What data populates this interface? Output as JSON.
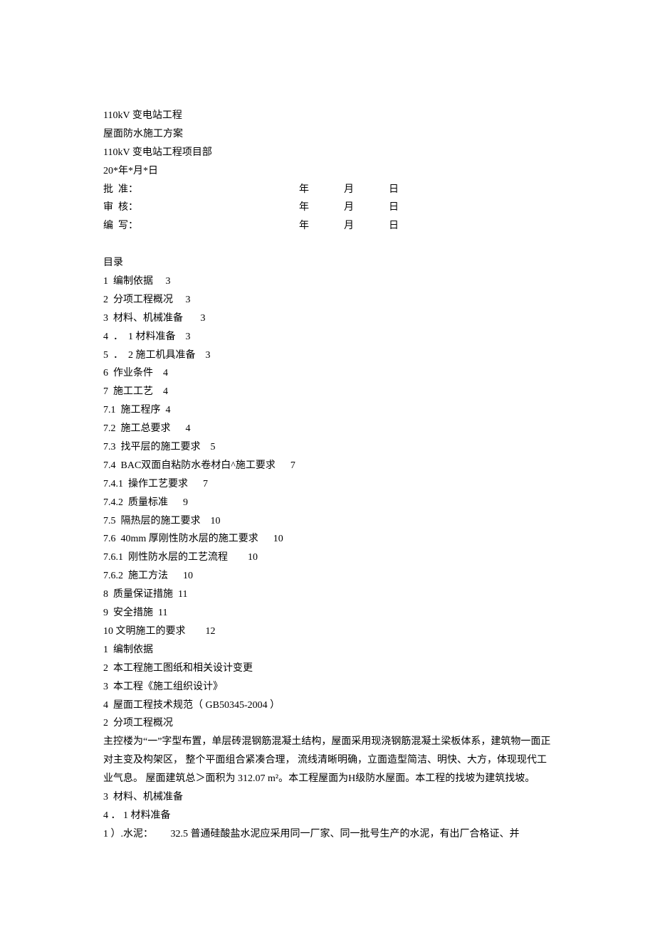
{
  "header": {
    "line1": "110kV 变电站工程",
    "line2": "屋面防水施工方案",
    "line3": "110kV 变电站工程项目部",
    "line4": "20*年*月*日"
  },
  "approvals": [
    {
      "label_a": "批",
      "label_b": "准：",
      "y": "年",
      "m": "月",
      "d": "日"
    },
    {
      "label_a": "审",
      "label_b": "核：",
      "y": "年",
      "m": "月",
      "d": "日"
    },
    {
      "label_a": "编",
      "label_b": "写：",
      "y": "年",
      "m": "月",
      "d": "日"
    }
  ],
  "toc_title": "目录",
  "toc": [
    "1  编制依据     3",
    "2  分项工程概况     3",
    "3  材料、机械准备       3",
    "4  ．  1 材料准备    3",
    "5  ．  2 施工机具准备    3",
    "6  作业条件    4",
    "7  施工工艺    4",
    "7.1  施工程序  4",
    "7.2  施工总要求      4",
    "7.3  找平层的施工要求    5",
    "7.4  BAC双面自粘防水卷材白^施工要求      7",
    "7.4.1  操作工艺要求      7",
    "7.4.2  质量标准      9",
    "7.5  隔热层的施工要求    10",
    "7.6  40mm 厚刚性防水层的施工要求      10",
    "7.6.1  刚性防水层的工艺流程        10",
    "7.6.2  施工方法      10",
    "8  质量保证措施  11",
    "9  安全措施  11",
    "10 文明施工的要求        12"
  ],
  "body": [
    "1  编制依据",
    "2  本工程施工图纸和相关设计变更",
    "3  本工程《施工组织设计》",
    "4  屋面工程技术规范（ GB50345-2004 ）",
    "2  分项工程概况"
  ],
  "para1": "主控楼为“一”字型布置，单层砖混钢筋混凝土结构，屋面采用现浇钢筋混凝土梁板体系，建筑物一面正对主变及构架区，   整个平面组合紧凑合理，  流线清晰明确，立面造型简洁、明快、大方，体现现代工业气息。    屋面建筑总＞面积为  312.07 m²。本工程屋面为H级防水屋面。本工程的找坡为建筑找坡。",
  "body2": [
    "3  材料、机械准备",
    "4 ． 1 材料准备",
    "1 ）.水泥：       32.5 普通硅酸盐水泥应采用同一厂家、同一批号生产的水泥，有出厂合格证、并"
  ]
}
